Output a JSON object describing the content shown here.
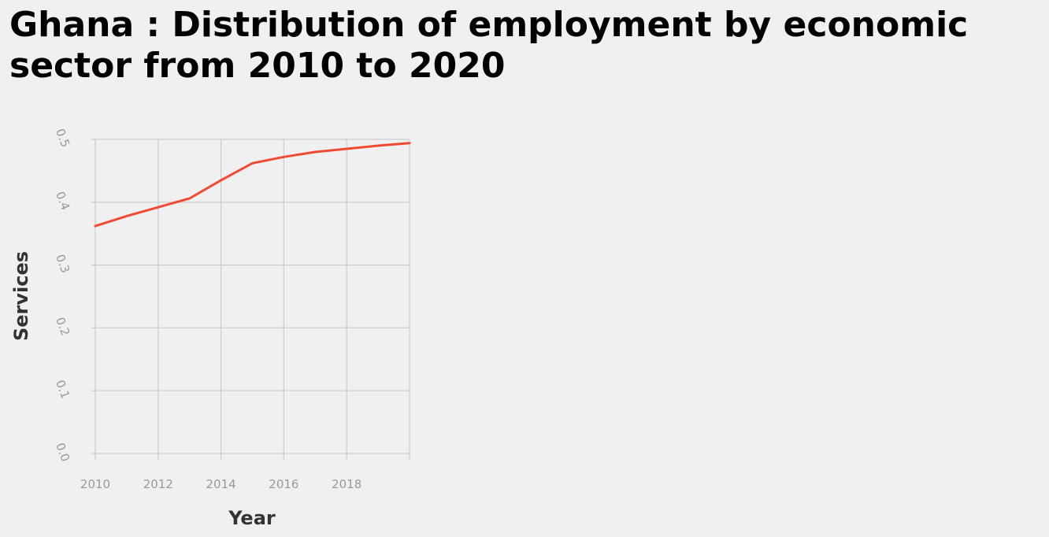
{
  "chart_data": {
    "type": "line",
    "title": "Ghana : Distribution of employment by economic sector from 2010 to 2020",
    "xlabel": "Year",
    "ylabel": "Services",
    "xlim": [
      2010,
      2020
    ],
    "ylim": [
      0.0,
      0.5
    ],
    "x_ticks": [
      2010,
      2012,
      2014,
      2016,
      2018
    ],
    "y_ticks": [
      "0.0",
      "0.1",
      "0.2",
      "0.3",
      "0.4",
      "0.5"
    ],
    "grid": true,
    "line_color": "#f04a32",
    "series": [
      {
        "x": [
          2010,
          2011,
          2012,
          2013,
          2014,
          2015,
          2016,
          2017,
          2018,
          2019,
          2020
        ],
        "values": [
          0.362,
          0.378,
          0.392,
          0.406,
          0.435,
          0.462,
          0.472,
          0.48,
          0.485,
          0.49,
          0.494
        ]
      }
    ]
  }
}
